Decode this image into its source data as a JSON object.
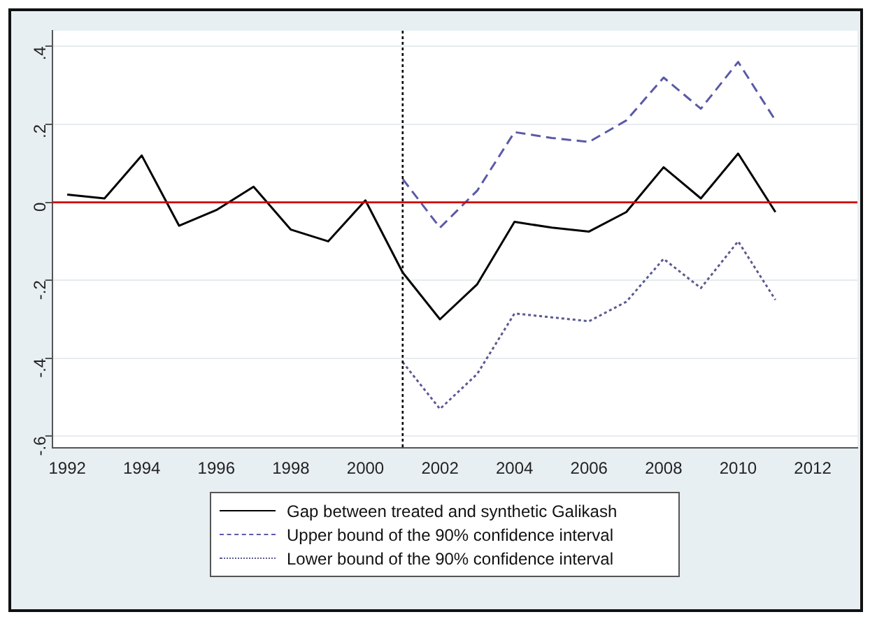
{
  "chart_data": {
    "type": "line",
    "x": [
      1992,
      1993,
      1994,
      1995,
      1996,
      1997,
      1998,
      1999,
      2000,
      2001,
      2002,
      2003,
      2004,
      2005,
      2006,
      2007,
      2008,
      2009,
      2010,
      2011
    ],
    "series": [
      {
        "name": "Gap between treated and synthetic Galikash",
        "color": "#000000",
        "line_style": "solid",
        "values": [
          0.02,
          0.01,
          0.12,
          -0.06,
          -0.02,
          0.04,
          -0.07,
          -0.1,
          0.005,
          -0.18,
          -0.3,
          -0.21,
          -0.05,
          -0.065,
          -0.075,
          -0.025,
          0.09,
          0.01,
          0.125,
          -0.025
        ]
      },
      {
        "name": "Upper bound of the 90% confidence interval",
        "color": "#5a5aa8",
        "line_style": "dashed",
        "x": [
          2001,
          2002,
          2003,
          2004,
          2005,
          2006,
          2007,
          2008,
          2009,
          2010,
          2011
        ],
        "values": [
          0.06,
          -0.065,
          0.03,
          0.18,
          0.165,
          0.155,
          0.21,
          0.32,
          0.24,
          0.36,
          0.21
        ]
      },
      {
        "name": "Lower bound of the 90% confidence interval",
        "color": "#5a5a90",
        "line_style": "dotted",
        "x": [
          2001,
          2002,
          2003,
          2004,
          2005,
          2006,
          2007,
          2008,
          2009,
          2010,
          2011
        ],
        "values": [
          -0.41,
          -0.53,
          -0.44,
          -0.285,
          -0.295,
          -0.305,
          -0.255,
          -0.145,
          -0.22,
          -0.1,
          -0.25
        ]
      }
    ],
    "xlim": [
      1991.6,
      2013.2
    ],
    "xticks": [
      1992,
      1994,
      1996,
      1998,
      2000,
      2002,
      2004,
      2006,
      2008,
      2010,
      2012
    ],
    "ylim": [
      -0.63,
      0.44
    ],
    "yticks": [
      {
        "value": -0.6,
        "label": "-.6"
      },
      {
        "value": -0.4,
        "label": "-.4"
      },
      {
        "value": -0.2,
        "label": "-.2"
      },
      0,
      {
        "value": 0.2,
        "label": ".2"
      },
      {
        "value": 0.4,
        "label": ".4"
      }
    ],
    "grid": "y",
    "legend": "bottom",
    "marker": "none",
    "ref_lines": [
      {
        "axis": "y",
        "value": 0,
        "color": "#cc0000",
        "line_style": "solid"
      },
      {
        "axis": "x",
        "value": 2001,
        "color": "#000000",
        "line_style": "dotted"
      }
    ]
  }
}
